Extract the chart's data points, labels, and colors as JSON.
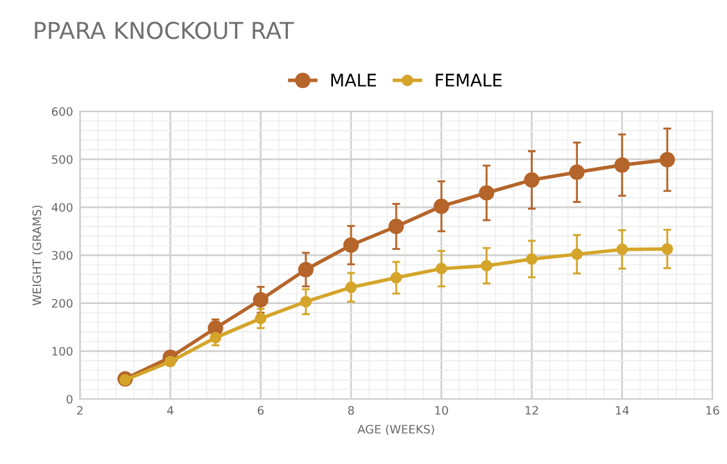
{
  "chart_data": {
    "type": "line",
    "title": "PPARA KNOCKOUT RAT",
    "xlabel": "AGE (WEEKS)",
    "ylabel": "WEIGHT (GRAMS)",
    "x": [
      3,
      4,
      5,
      6,
      7,
      8,
      9,
      10,
      11,
      12,
      13,
      14,
      15
    ],
    "series": [
      {
        "name": "MALE",
        "color": "#b5652a",
        "values": [
          42,
          87,
          148,
          207,
          270,
          321,
          360,
          402,
          430,
          457,
          473,
          488,
          499
        ],
        "errors": [
          5,
          10,
          18,
          27,
          35,
          40,
          47,
          52,
          57,
          60,
          62,
          64,
          65
        ]
      },
      {
        "name": "FEMALE",
        "color": "#d4a52a",
        "values": [
          40,
          78,
          128,
          168,
          203,
          233,
          253,
          272,
          278,
          292,
          302,
          312,
          313
        ],
        "errors": [
          4,
          8,
          16,
          20,
          26,
          30,
          33,
          37,
          37,
          38,
          40,
          40,
          40
        ]
      }
    ],
    "xlim": [
      2,
      16
    ],
    "xticks": [
      2,
      4,
      6,
      8,
      10,
      12,
      14,
      16
    ],
    "ylim": [
      0,
      600
    ],
    "yticks": [
      0,
      100,
      200,
      300,
      400,
      500,
      600
    ],
    "grid": true,
    "legend": "top",
    "marker": "circle",
    "line_style": "solid"
  }
}
